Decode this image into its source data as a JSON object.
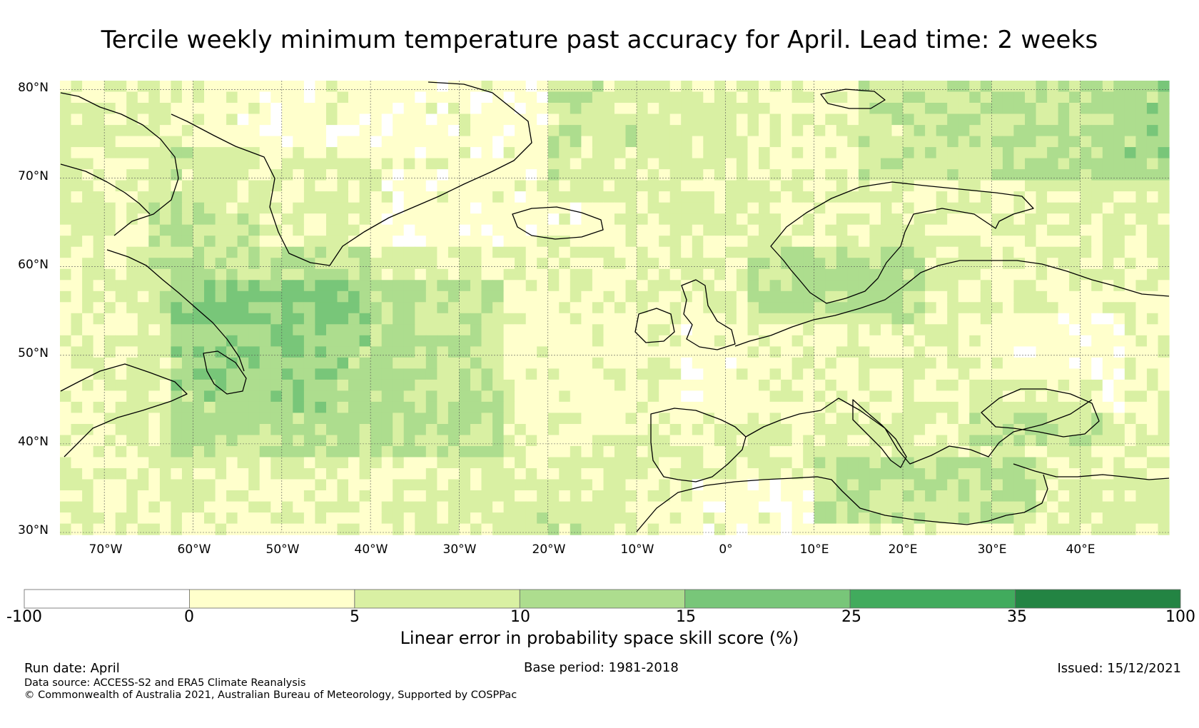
{
  "title": "Tercile weekly minimum temperature past accuracy for April. Lead time: 2 weeks",
  "map": {
    "lat_labels": [
      "80°N",
      "70°N",
      "60°N",
      "50°N",
      "40°N",
      "30°N"
    ],
    "lon_labels": [
      "70°W",
      "60°W",
      "50°W",
      "40°W",
      "30°W",
      "20°W",
      "10°W",
      "0°",
      "10°E",
      "20°E",
      "30°E",
      "40°E"
    ],
    "extent": {
      "lon": [
        -75,
        50
      ],
      "lat": [
        30,
        81
      ]
    }
  },
  "colorbar": {
    "ticks": [
      "-100",
      "0",
      "5",
      "10",
      "15",
      "25",
      "35",
      "100"
    ],
    "colors": [
      "#ffffff",
      "#ffffcc",
      "#d9f0a3",
      "#addd8e",
      "#78c679",
      "#41ab5d",
      "#238443"
    ],
    "label": "Linear error in probability space skill score (%)"
  },
  "footer": {
    "run_date": "Run date: April",
    "base_period": "Base period: 1981-2018",
    "issued": "Issued: 15/12/2021",
    "data_source": "Data source: ACCESS-S2 and ERA5 Climate Reanalysis",
    "copyright": "© Commonwealth of Australia 2021, Australian Bureau of Meteorology, Supported by COSPPac"
  }
}
